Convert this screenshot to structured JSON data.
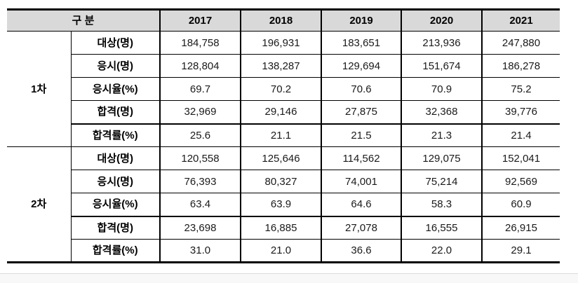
{
  "table": {
    "header": {
      "category_label": "구 분",
      "years": [
        "2017",
        "2018",
        "2019",
        "2020",
        "2021"
      ]
    },
    "groups": [
      {
        "name": "1차",
        "rows": [
          {
            "label": "대상(명)",
            "values": [
              "184,758",
              "196,931",
              "183,651",
              "213,936",
              "247,880"
            ]
          },
          {
            "label": "응시(명)",
            "values": [
              "128,804",
              "138,287",
              "129,694",
              "151,674",
              "186,278"
            ]
          },
          {
            "label": "응시율(%)",
            "values": [
              "69.7",
              "70.2",
              "70.6",
              "70.9",
              "75.2"
            ]
          },
          {
            "label": "합격(명)",
            "values": [
              "32,969",
              "29,146",
              "27,875",
              "32,368",
              "39,776"
            ]
          },
          {
            "label": "합격률(%)",
            "values": [
              "25.6",
              "21.1",
              "21.5",
              "21.3",
              "21.4"
            ]
          }
        ]
      },
      {
        "name": "2차",
        "rows": [
          {
            "label": "대상(명)",
            "values": [
              "120,558",
              "125,646",
              "114,562",
              "129,075",
              "152,041"
            ]
          },
          {
            "label": "응시(명)",
            "values": [
              "76,393",
              "80,327",
              "74,001",
              "75,214",
              "92,569"
            ]
          },
          {
            "label": "응시율(%)",
            "values": [
              "63.4",
              "63.9",
              "64.6",
              "58.3",
              "60.9"
            ]
          },
          {
            "label": "합격(명)",
            "values": [
              "23,698",
              "16,885",
              "27,078",
              "16,555",
              "26,915"
            ]
          },
          {
            "label": "합격률(%)",
            "values": [
              "31.0",
              "21.0",
              "36.6",
              "22.0",
              "29.1"
            ]
          }
        ]
      }
    ]
  },
  "colors": {
    "header_bg": "#d9d9d9",
    "border": "#000000",
    "page_strip_bg": "#f8f8f8"
  }
}
